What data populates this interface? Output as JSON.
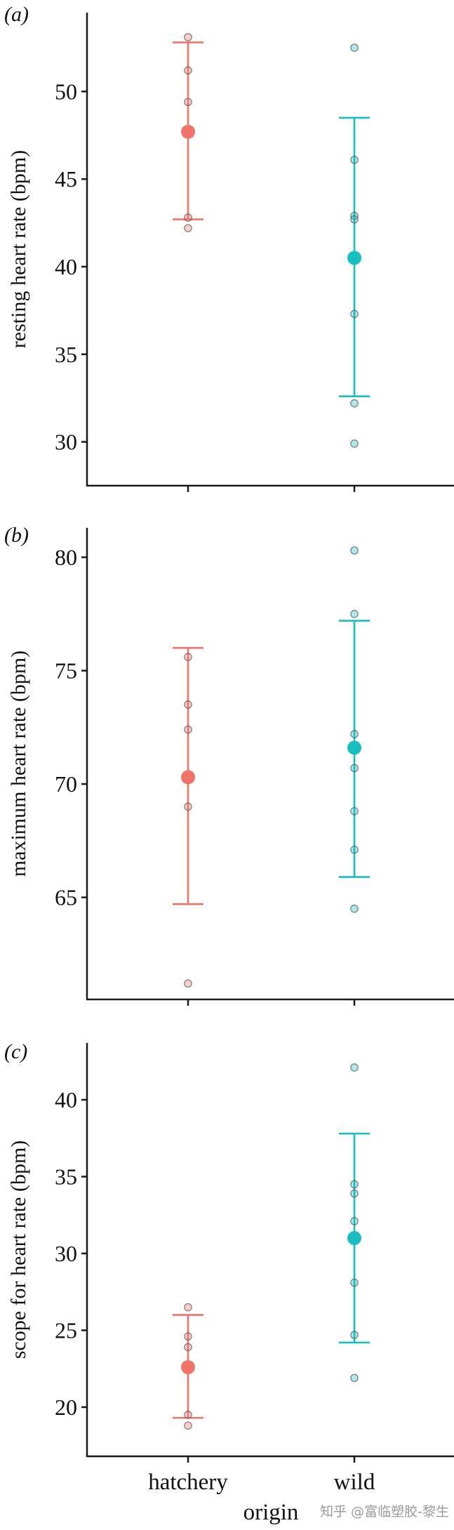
{
  "colors": {
    "hatchery": "#F0746A",
    "wild": "#19BEC0",
    "axis": "#1a1a1a"
  },
  "x_axis": {
    "title": "origin",
    "categories": [
      "hatchery",
      "wild"
    ]
  },
  "watermark": "知乎 @富临塑胶-黎生",
  "chart_data": [
    {
      "type": "scatter",
      "panel_label": "(a)",
      "ylabel": "resting heart rate (bpm)",
      "ylim": [
        27.5,
        54.5
      ],
      "yticks": [
        30,
        35,
        40,
        45,
        50
      ],
      "categories": [
        "hatchery",
        "wild"
      ],
      "series": [
        {
          "name": "hatchery",
          "mean": 47.7,
          "ci_low": 42.7,
          "ci_high": 52.8,
          "points": [
            53.1,
            51.2,
            49.4,
            42.8,
            42.2
          ]
        },
        {
          "name": "wild",
          "mean": 40.5,
          "ci_low": 32.6,
          "ci_high": 48.5,
          "points": [
            52.5,
            46.1,
            42.9,
            42.7,
            37.3,
            32.2,
            29.9
          ]
        }
      ]
    },
    {
      "type": "scatter",
      "panel_label": "(b)",
      "ylabel": "maximum heart rate (bpm)",
      "ylim": [
        60.5,
        81.3
      ],
      "yticks": [
        65,
        70,
        75,
        80
      ],
      "categories": [
        "hatchery",
        "wild"
      ],
      "series": [
        {
          "name": "hatchery",
          "mean": 70.3,
          "ci_low": 64.7,
          "ci_high": 76.0,
          "points": [
            75.6,
            73.5,
            72.4,
            69.0,
            61.2
          ]
        },
        {
          "name": "wild",
          "mean": 71.6,
          "ci_low": 65.9,
          "ci_high": 77.2,
          "points": [
            80.3,
            77.5,
            72.2,
            70.7,
            68.8,
            67.1,
            64.5
          ]
        }
      ]
    },
    {
      "type": "scatter",
      "panel_label": "(c)",
      "ylabel": "scope for heart rate (bpm)",
      "ylim": [
        16.8,
        43.7
      ],
      "yticks": [
        20,
        25,
        30,
        35,
        40
      ],
      "categories": [
        "hatchery",
        "wild"
      ],
      "series": [
        {
          "name": "hatchery",
          "mean": 22.6,
          "ci_low": 19.3,
          "ci_high": 26.0,
          "points": [
            26.5,
            24.6,
            23.9,
            19.5,
            18.8
          ]
        },
        {
          "name": "wild",
          "mean": 31.0,
          "ci_low": 24.2,
          "ci_high": 37.8,
          "points": [
            42.1,
            34.5,
            33.9,
            32.1,
            28.1,
            24.7,
            21.9
          ]
        }
      ]
    }
  ]
}
